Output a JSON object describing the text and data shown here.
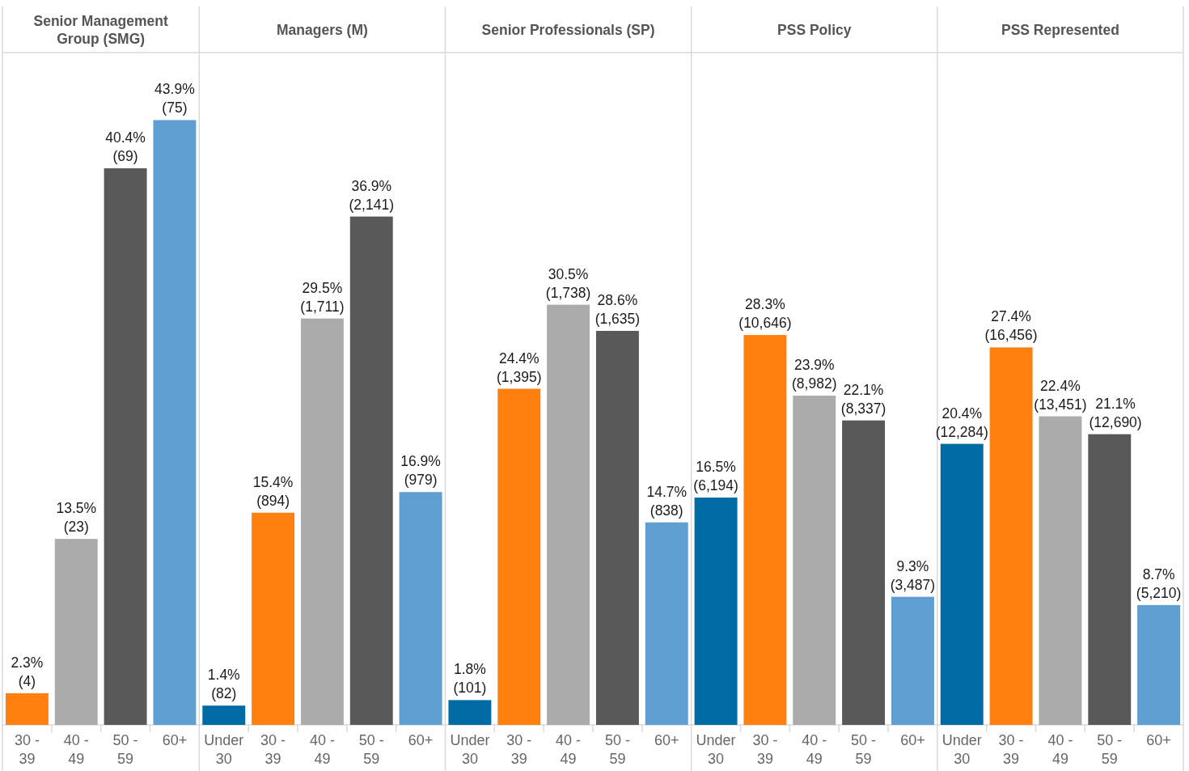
{
  "chart_data": [
    {
      "type": "bar",
      "title": "Senior Management Group (SMG)",
      "categories": [
        "30 - 39",
        "40 - 49",
        "50 - 59",
        "60+"
      ],
      "values": [
        2.3,
        13.5,
        40.4,
        43.9
      ],
      "colors": [
        "#ff800e",
        "#ababab",
        "#595959",
        "#5f9ed1"
      ],
      "value_labels": [
        "2.3%\n(4)",
        "13.5%\n(23)",
        "40.4%\n(69)",
        "43.9%\n(75)"
      ],
      "ylim": [
        0,
        48.8
      ],
      "tick_labels": "x"
    },
    {
      "type": "bar",
      "title": "Managers (M)",
      "categories": [
        "Under 30",
        "30 - 39",
        "40 - 49",
        "50 - 59",
        "60+"
      ],
      "values": [
        1.4,
        15.4,
        29.5,
        36.9,
        16.9
      ],
      "colors": [
        "#006ba4",
        "#ff800e",
        "#ababab",
        "#595959",
        "#5f9ed1"
      ],
      "value_labels": [
        "1.4%\n(82)",
        "15.4%\n(894)",
        "29.5%\n(1,711)",
        "36.9%\n(2,141)",
        "16.9%\n(979)"
      ],
      "ylim": [
        0,
        48.8
      ],
      "tick_labels": "x"
    },
    {
      "type": "bar",
      "title": "Senior Professionals (SP)",
      "categories": [
        "Under 30",
        "30 - 39",
        "40 - 49",
        "50 - 59",
        "60+"
      ],
      "values": [
        1.8,
        24.4,
        30.5,
        28.6,
        14.7
      ],
      "colors": [
        "#006ba4",
        "#ff800e",
        "#ababab",
        "#595959",
        "#5f9ed1"
      ],
      "value_labels": [
        "1.8%\n(101)",
        "24.4%\n(1,395)",
        "30.5%\n(1,738)",
        "28.6%\n(1,635)",
        "14.7%\n(838)"
      ],
      "ylim": [
        0,
        48.8
      ],
      "tick_labels": "x"
    },
    {
      "type": "bar",
      "title": "PSS Policy",
      "categories": [
        "Under 30",
        "30 - 39",
        "40 - 49",
        "50 - 59",
        "60+"
      ],
      "values": [
        16.5,
        28.3,
        23.9,
        22.1,
        9.3
      ],
      "colors": [
        "#006ba4",
        "#ff800e",
        "#ababab",
        "#595959",
        "#5f9ed1"
      ],
      "value_labels": [
        "16.5%\n(6,194)",
        "28.3%\n(10,646)",
        "23.9%\n(8,982)",
        "22.1%\n(8,337)",
        "9.3%\n(3,487)"
      ],
      "ylim": [
        0,
        48.8
      ],
      "tick_labels": "x"
    },
    {
      "type": "bar",
      "title": "PSS Represented",
      "categories": [
        "Under 30",
        "30 - 39",
        "40 - 49",
        "50 - 59",
        "60+"
      ],
      "values": [
        20.4,
        27.4,
        22.4,
        21.1,
        8.7
      ],
      "colors": [
        "#006ba4",
        "#ff800e",
        "#ababab",
        "#595959",
        "#5f9ed1"
      ],
      "value_labels": [
        "20.4%\n(12,284)",
        "27.4%\n(16,456)",
        "22.4%\n(13,451)",
        "21.1%\n(12,690)",
        "8.7%\n(5,210)"
      ],
      "ylim": [
        0,
        48.8
      ],
      "tick_labels": "x"
    }
  ]
}
